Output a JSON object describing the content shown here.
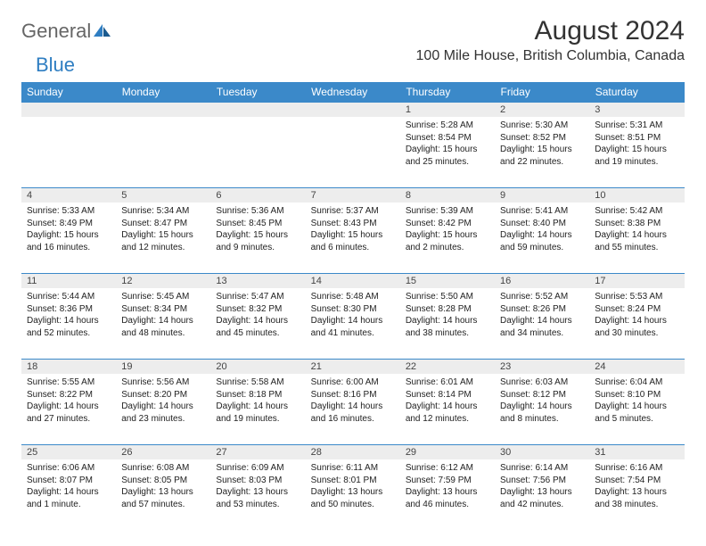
{
  "logo": {
    "text1": "General",
    "text2": "Blue"
  },
  "title": "August 2024",
  "location": "100 Mile House, British Columbia, Canada",
  "colors": {
    "header_bg": "#3b89c9",
    "header_text": "#ffffff",
    "daynum_bg": "#ededed",
    "border": "#3b89c9",
    "logo_gray": "#666666",
    "logo_blue": "#2f7ec2"
  },
  "weekdays": [
    "Sunday",
    "Monday",
    "Tuesday",
    "Wednesday",
    "Thursday",
    "Friday",
    "Saturday"
  ],
  "weeks": [
    [
      {
        "day": "",
        "sunrise": "",
        "sunset": "",
        "daylight": ""
      },
      {
        "day": "",
        "sunrise": "",
        "sunset": "",
        "daylight": ""
      },
      {
        "day": "",
        "sunrise": "",
        "sunset": "",
        "daylight": ""
      },
      {
        "day": "",
        "sunrise": "",
        "sunset": "",
        "daylight": ""
      },
      {
        "day": "1",
        "sunrise": "Sunrise: 5:28 AM",
        "sunset": "Sunset: 8:54 PM",
        "daylight": "Daylight: 15 hours and 25 minutes."
      },
      {
        "day": "2",
        "sunrise": "Sunrise: 5:30 AM",
        "sunset": "Sunset: 8:52 PM",
        "daylight": "Daylight: 15 hours and 22 minutes."
      },
      {
        "day": "3",
        "sunrise": "Sunrise: 5:31 AM",
        "sunset": "Sunset: 8:51 PM",
        "daylight": "Daylight: 15 hours and 19 minutes."
      }
    ],
    [
      {
        "day": "4",
        "sunrise": "Sunrise: 5:33 AM",
        "sunset": "Sunset: 8:49 PM",
        "daylight": "Daylight: 15 hours and 16 minutes."
      },
      {
        "day": "5",
        "sunrise": "Sunrise: 5:34 AM",
        "sunset": "Sunset: 8:47 PM",
        "daylight": "Daylight: 15 hours and 12 minutes."
      },
      {
        "day": "6",
        "sunrise": "Sunrise: 5:36 AM",
        "sunset": "Sunset: 8:45 PM",
        "daylight": "Daylight: 15 hours and 9 minutes."
      },
      {
        "day": "7",
        "sunrise": "Sunrise: 5:37 AM",
        "sunset": "Sunset: 8:43 PM",
        "daylight": "Daylight: 15 hours and 6 minutes."
      },
      {
        "day": "8",
        "sunrise": "Sunrise: 5:39 AM",
        "sunset": "Sunset: 8:42 PM",
        "daylight": "Daylight: 15 hours and 2 minutes."
      },
      {
        "day": "9",
        "sunrise": "Sunrise: 5:41 AM",
        "sunset": "Sunset: 8:40 PM",
        "daylight": "Daylight: 14 hours and 59 minutes."
      },
      {
        "day": "10",
        "sunrise": "Sunrise: 5:42 AM",
        "sunset": "Sunset: 8:38 PM",
        "daylight": "Daylight: 14 hours and 55 minutes."
      }
    ],
    [
      {
        "day": "11",
        "sunrise": "Sunrise: 5:44 AM",
        "sunset": "Sunset: 8:36 PM",
        "daylight": "Daylight: 14 hours and 52 minutes."
      },
      {
        "day": "12",
        "sunrise": "Sunrise: 5:45 AM",
        "sunset": "Sunset: 8:34 PM",
        "daylight": "Daylight: 14 hours and 48 minutes."
      },
      {
        "day": "13",
        "sunrise": "Sunrise: 5:47 AM",
        "sunset": "Sunset: 8:32 PM",
        "daylight": "Daylight: 14 hours and 45 minutes."
      },
      {
        "day": "14",
        "sunrise": "Sunrise: 5:48 AM",
        "sunset": "Sunset: 8:30 PM",
        "daylight": "Daylight: 14 hours and 41 minutes."
      },
      {
        "day": "15",
        "sunrise": "Sunrise: 5:50 AM",
        "sunset": "Sunset: 8:28 PM",
        "daylight": "Daylight: 14 hours and 38 minutes."
      },
      {
        "day": "16",
        "sunrise": "Sunrise: 5:52 AM",
        "sunset": "Sunset: 8:26 PM",
        "daylight": "Daylight: 14 hours and 34 minutes."
      },
      {
        "day": "17",
        "sunrise": "Sunrise: 5:53 AM",
        "sunset": "Sunset: 8:24 PM",
        "daylight": "Daylight: 14 hours and 30 minutes."
      }
    ],
    [
      {
        "day": "18",
        "sunrise": "Sunrise: 5:55 AM",
        "sunset": "Sunset: 8:22 PM",
        "daylight": "Daylight: 14 hours and 27 minutes."
      },
      {
        "day": "19",
        "sunrise": "Sunrise: 5:56 AM",
        "sunset": "Sunset: 8:20 PM",
        "daylight": "Daylight: 14 hours and 23 minutes."
      },
      {
        "day": "20",
        "sunrise": "Sunrise: 5:58 AM",
        "sunset": "Sunset: 8:18 PM",
        "daylight": "Daylight: 14 hours and 19 minutes."
      },
      {
        "day": "21",
        "sunrise": "Sunrise: 6:00 AM",
        "sunset": "Sunset: 8:16 PM",
        "daylight": "Daylight: 14 hours and 16 minutes."
      },
      {
        "day": "22",
        "sunrise": "Sunrise: 6:01 AM",
        "sunset": "Sunset: 8:14 PM",
        "daylight": "Daylight: 14 hours and 12 minutes."
      },
      {
        "day": "23",
        "sunrise": "Sunrise: 6:03 AM",
        "sunset": "Sunset: 8:12 PM",
        "daylight": "Daylight: 14 hours and 8 minutes."
      },
      {
        "day": "24",
        "sunrise": "Sunrise: 6:04 AM",
        "sunset": "Sunset: 8:10 PM",
        "daylight": "Daylight: 14 hours and 5 minutes."
      }
    ],
    [
      {
        "day": "25",
        "sunrise": "Sunrise: 6:06 AM",
        "sunset": "Sunset: 8:07 PM",
        "daylight": "Daylight: 14 hours and 1 minute."
      },
      {
        "day": "26",
        "sunrise": "Sunrise: 6:08 AM",
        "sunset": "Sunset: 8:05 PM",
        "daylight": "Daylight: 13 hours and 57 minutes."
      },
      {
        "day": "27",
        "sunrise": "Sunrise: 6:09 AM",
        "sunset": "Sunset: 8:03 PM",
        "daylight": "Daylight: 13 hours and 53 minutes."
      },
      {
        "day": "28",
        "sunrise": "Sunrise: 6:11 AM",
        "sunset": "Sunset: 8:01 PM",
        "daylight": "Daylight: 13 hours and 50 minutes."
      },
      {
        "day": "29",
        "sunrise": "Sunrise: 6:12 AM",
        "sunset": "Sunset: 7:59 PM",
        "daylight": "Daylight: 13 hours and 46 minutes."
      },
      {
        "day": "30",
        "sunrise": "Sunrise: 6:14 AM",
        "sunset": "Sunset: 7:56 PM",
        "daylight": "Daylight: 13 hours and 42 minutes."
      },
      {
        "day": "31",
        "sunrise": "Sunrise: 6:16 AM",
        "sunset": "Sunset: 7:54 PM",
        "daylight": "Daylight: 13 hours and 38 minutes."
      }
    ]
  ]
}
